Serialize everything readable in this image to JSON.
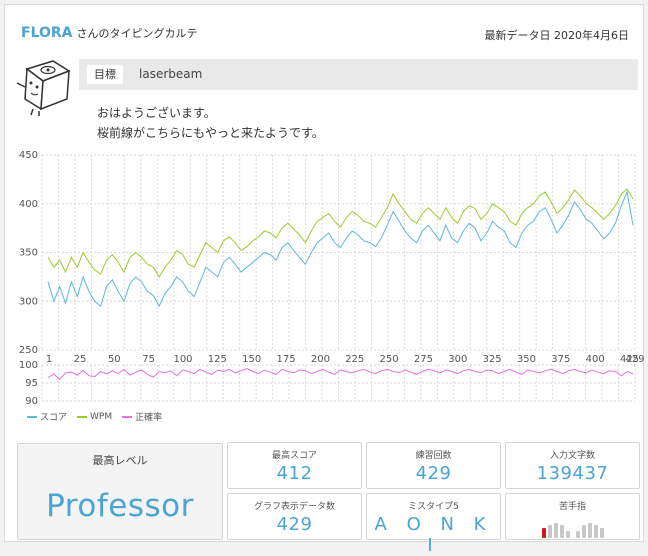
{
  "header": {
    "brand": "FLORA",
    "subtitle": "さんのタイピングカルテ",
    "latest_label": "最新データ日",
    "latest_date": "2020年4月6日"
  },
  "goal": {
    "label": "目標",
    "value": "laserbeam"
  },
  "message": {
    "line1": "おはようございます。",
    "line2": "桜前線がこちらにもやっと来たようです。"
  },
  "chart_data": {
    "type": "line",
    "x_ticks": [
      "1",
      "25",
      "50",
      "75",
      "100",
      "125",
      "150",
      "175",
      "200",
      "225",
      "250",
      "275",
      "300",
      "325",
      "350",
      "375",
      "400",
      "425",
      "429"
    ],
    "top_panel": {
      "y_ticks": [
        "450",
        "400",
        "350",
        "300",
        "250"
      ],
      "ylim": [
        250,
        450
      ],
      "series": [
        {
          "name": "スコア",
          "color": "#5bb8dc",
          "values": [
            320,
            300,
            315,
            298,
            320,
            305,
            325,
            310,
            300,
            295,
            315,
            322,
            310,
            300,
            318,
            325,
            320,
            310,
            306,
            295,
            308,
            315,
            325,
            320,
            310,
            305,
            320,
            335,
            330,
            325,
            340,
            345,
            338,
            330,
            335,
            340,
            345,
            350,
            348,
            342,
            355,
            360,
            352,
            345,
            338,
            350,
            360,
            365,
            370,
            360,
            355,
            365,
            372,
            368,
            362,
            360,
            356,
            365,
            378,
            392,
            382,
            372,
            365,
            360,
            372,
            378,
            370,
            362,
            378,
            365,
            360,
            372,
            380,
            375,
            362,
            370,
            382,
            376,
            372,
            360,
            355,
            370,
            378,
            382,
            392,
            396,
            384,
            370,
            378,
            388,
            402,
            394,
            384,
            380,
            372,
            364,
            370,
            380,
            398,
            412,
            378
          ]
        },
        {
          "name": "WPM",
          "color": "#9ccc2c",
          "values": [
            345,
            335,
            342,
            330,
            345,
            335,
            350,
            340,
            332,
            328,
            342,
            348,
            340,
            330,
            345,
            350,
            345,
            338,
            335,
            325,
            335,
            342,
            352,
            348,
            338,
            335,
            348,
            360,
            355,
            350,
            362,
            366,
            360,
            352,
            356,
            362,
            366,
            372,
            370,
            365,
            375,
            380,
            374,
            368,
            360,
            372,
            382,
            386,
            390,
            382,
            376,
            386,
            392,
            388,
            382,
            380,
            376,
            386,
            396,
            410,
            400,
            392,
            384,
            380,
            390,
            396,
            390,
            384,
            396,
            386,
            380,
            392,
            398,
            395,
            384,
            390,
            400,
            396,
            392,
            382,
            378,
            390,
            396,
            400,
            408,
            412,
            402,
            390,
            396,
            404,
            414,
            408,
            400,
            396,
            390,
            384,
            390,
            398,
            410,
            415,
            405
          ]
        }
      ]
    },
    "bottom_panel": {
      "y_ticks": [
        "100",
        "95",
        "90"
      ],
      "ylim": [
        90,
        100
      ],
      "series": [
        {
          "name": "正確率",
          "color": "#e670e6",
          "values": [
            96.5,
            97.5,
            96,
            97.8,
            98,
            97.2,
            98.5,
            97,
            96.8,
            98.2,
            97.5,
            98.4,
            97.6,
            98.8,
            97.2,
            98,
            98.6,
            97.4,
            96.6,
            98.2,
            97.8,
            98.4,
            97,
            98.6,
            98.2,
            97.6,
            98.8,
            98,
            97.4,
            98.6,
            98.2,
            98.8,
            97.8,
            98.4,
            99,
            98.2,
            97.6,
            98.6,
            98,
            97.4,
            98.8,
            98.2,
            97.8,
            98.6,
            98.4,
            97.6,
            98.2,
            98.8,
            98,
            97.4,
            98.6,
            98.2,
            97.8,
            98.4,
            98.8,
            98,
            97.6,
            98.4,
            98.8,
            98.2,
            97.8,
            98.6,
            98,
            97.4,
            98.2,
            98.8,
            98.4,
            97.8,
            98.6,
            98.2,
            97.6,
            98.4,
            98.8,
            98.2,
            97.8,
            98.6,
            98.4,
            97.6,
            98.2,
            98.8,
            98,
            97.4,
            98.6,
            98.2,
            97.8,
            98.4,
            98.8,
            98.2,
            97.6,
            98.4,
            98.8,
            98.2,
            97.8,
            98.6,
            98,
            97.6,
            98.4,
            98.2,
            97,
            98.2,
            97.6
          ]
        }
      ]
    },
    "legend": [
      "スコア",
      "WPM",
      "正確率"
    ]
  },
  "stats": {
    "level_label": "最高レベル",
    "level_value": "Professor",
    "max_score_label": "最高スコア",
    "max_score": "412",
    "practice_label": "練習回数",
    "practice_count": "429",
    "chars_label": "入力文字数",
    "chars_count": "139437",
    "graph_label": "グラフ表示データ数",
    "graph_count": "429",
    "miss_label": "ミスタイプ5",
    "miss_keys": "A O N K I",
    "finger_label": "苦手指",
    "weak_finger_icon": "left-pinky-highlight"
  }
}
